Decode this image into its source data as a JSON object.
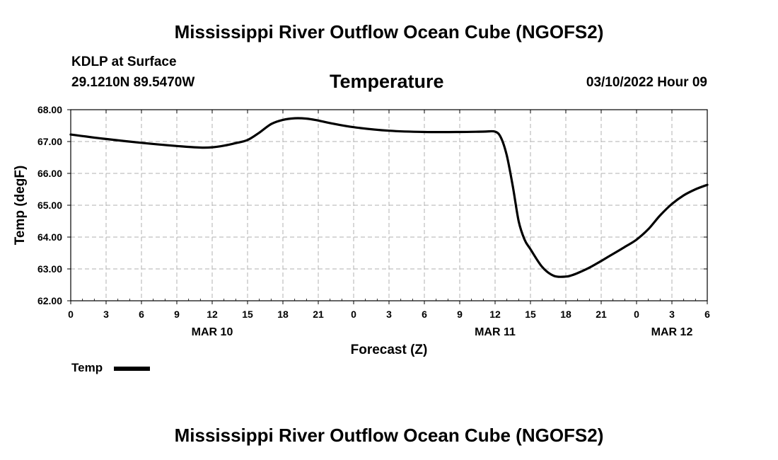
{
  "page_title": "Mississippi River Outflow Ocean Cube (NGOFS2)",
  "footer_title": "Mississippi River Outflow Ocean Cube (NGOFS2)",
  "station": {
    "label": "KDLP at Surface",
    "coords": "29.1210N  89.5470W"
  },
  "run": {
    "label": "03/10/2022 Hour 09"
  },
  "legend": {
    "label": "Temp"
  },
  "colors": {
    "line": "#000000",
    "grid": "#b0b0b0"
  },
  "chart_data": {
    "type": "line",
    "title": "Temperature",
    "xlabel": "Forecast (Z)",
    "ylabel": "Temp (degF)",
    "xlim": [
      0,
      54
    ],
    "ylim": [
      62.0,
      68.0
    ],
    "x_ticks": [
      0,
      3,
      6,
      9,
      12,
      15,
      18,
      21,
      24,
      27,
      30,
      33,
      36,
      39,
      42,
      45,
      48,
      51,
      54
    ],
    "x_tick_labels": [
      "0",
      "3",
      "6",
      "9",
      "12",
      "15",
      "18",
      "21",
      "0",
      "3",
      "6",
      "9",
      "12",
      "15",
      "18",
      "21",
      "0",
      "3",
      "6"
    ],
    "y_ticks": [
      62,
      63,
      64,
      65,
      66,
      67,
      68
    ],
    "y_tick_labels": [
      "62.00",
      "63.00",
      "64.00",
      "65.00",
      "66.00",
      "67.00",
      "68.00"
    ],
    "date_labels": [
      {
        "x": 12,
        "label": "MAR 10"
      },
      {
        "x": 36,
        "label": "MAR 11"
      },
      {
        "x": 51,
        "label": "MAR 12"
      }
    ],
    "grid": true,
    "series": [
      {
        "name": "Temp",
        "x": [
          0,
          3,
          6,
          9,
          11,
          12,
          13,
          14,
          15,
          16,
          17,
          18,
          19,
          20,
          21,
          22,
          24,
          27,
          30,
          33,
          35,
          36,
          36.5,
          37,
          37.5,
          38,
          38.5,
          39,
          40,
          41,
          42,
          42.5,
          43,
          44,
          45,
          46,
          47,
          48,
          49,
          50,
          51,
          52,
          53,
          54
        ],
        "values": [
          67.22,
          67.08,
          66.96,
          66.86,
          66.81,
          66.82,
          66.87,
          66.95,
          67.05,
          67.28,
          67.55,
          67.68,
          67.73,
          67.72,
          67.66,
          67.58,
          67.45,
          67.34,
          67.3,
          67.3,
          67.31,
          67.31,
          67.12,
          66.55,
          65.6,
          64.5,
          63.92,
          63.62,
          63.06,
          62.78,
          62.76,
          62.8,
          62.87,
          63.04,
          63.25,
          63.47,
          63.69,
          63.92,
          64.25,
          64.68,
          65.04,
          65.31,
          65.5,
          65.64
        ]
      }
    ]
  }
}
